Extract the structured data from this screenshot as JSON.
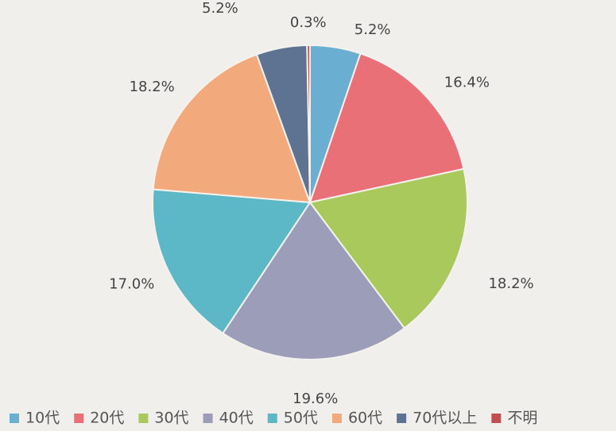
{
  "chart_data": {
    "type": "pie",
    "categories": [
      "10代",
      "20代",
      "30代",
      "40代",
      "50代",
      "60代",
      "70代以上",
      "不明"
    ],
    "values": [
      5.2,
      16.4,
      18.2,
      19.6,
      17.0,
      18.2,
      5.2,
      0.3
    ],
    "value_labels": [
      "5.2%",
      "16.4%",
      "18.2%",
      "19.6%",
      "17.0%",
      "18.2%",
      "5.2%",
      "0.3%"
    ],
    "colors": [
      "#6aaed2",
      "#ea7078",
      "#a9c95c",
      "#9c9db9",
      "#5cb7c6",
      "#f2aa7c",
      "#5d7391",
      "#c05050"
    ],
    "legend": "bottom"
  }
}
